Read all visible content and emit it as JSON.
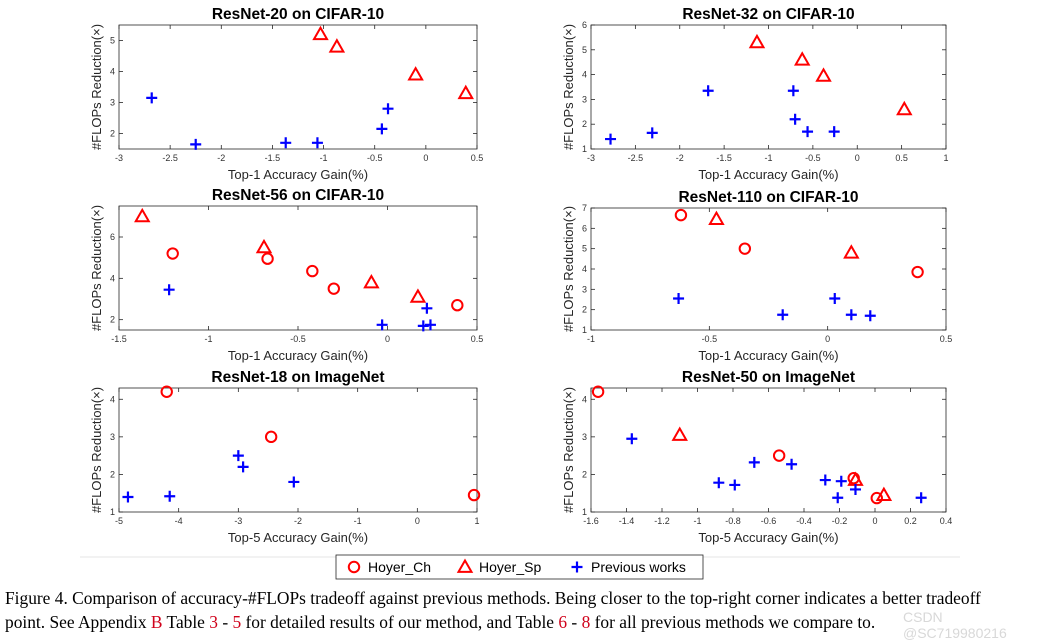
{
  "legend": {
    "items": [
      {
        "name": "Hoyer_Ch",
        "marker": "circle",
        "color": "#ff0000"
      },
      {
        "name": "Hoyer_Sp",
        "marker": "triangle",
        "color": "#ff0000"
      },
      {
        "name": "Previous works",
        "marker": "plus",
        "color": "#0000ff"
      }
    ]
  },
  "chart_data": [
    {
      "type": "scatter",
      "title": "ResNet-20 on CIFAR-10",
      "xlabel": "Top-1 Accuracy Gain(%)",
      "ylabel": "#FLOPs Reduction(×)",
      "xlim": [
        -3,
        0.5
      ],
      "ylim": [
        1.5,
        5.5
      ],
      "xticks": [
        -3,
        -2.5,
        -2,
        -1.5,
        -1,
        -0.5,
        0,
        0.5
      ],
      "xtick_labels": [
        "-3",
        "-2.5",
        "-2",
        "-1.5",
        "-1",
        "-0.5",
        "0",
        "0.5"
      ],
      "yticks": [
        2,
        3,
        4,
        5
      ],
      "ytick_labels": [
        "2",
        "3",
        "4",
        "5"
      ],
      "series": [
        {
          "name": "Hoyer_Ch",
          "points": []
        },
        {
          "name": "Hoyer_Sp",
          "points": [
            [
              -1.03,
              5.2
            ],
            [
              -0.87,
              4.8
            ],
            [
              -0.1,
              3.9
            ],
            [
              0.39,
              3.3
            ]
          ]
        },
        {
          "name": "Previous works",
          "points": [
            [
              -2.68,
              3.15
            ],
            [
              -2.25,
              1.65
            ],
            [
              -1.37,
              1.7
            ],
            [
              -1.06,
              1.7
            ],
            [
              -0.43,
              2.15
            ],
            [
              -0.37,
              2.8
            ]
          ]
        }
      ]
    },
    {
      "type": "scatter",
      "title": "ResNet-32 on CIFAR-10",
      "xlabel": "Top-1 Accuracy Gain(%)",
      "ylabel": "#FLOPs Reduction(×)",
      "xlim": [
        -3,
        1
      ],
      "ylim": [
        1,
        6
      ],
      "xticks": [
        -3,
        -2.5,
        -2,
        -1.5,
        -1,
        -0.5,
        0,
        0.5,
        1
      ],
      "xtick_labels": [
        "-3",
        "-2.5",
        "-2",
        "-1.5",
        "-1",
        "-0.5",
        "0",
        "0.5",
        "1"
      ],
      "yticks": [
        1,
        2,
        3,
        4,
        5,
        6
      ],
      "ytick_labels": [
        "1",
        "2",
        "3",
        "4",
        "5",
        "6"
      ],
      "series": [
        {
          "name": "Hoyer_Ch",
          "points": []
        },
        {
          "name": "Hoyer_Sp",
          "points": [
            [
              -1.13,
              5.3
            ],
            [
              -0.62,
              4.6
            ],
            [
              -0.38,
              3.95
            ],
            [
              0.53,
              2.6
            ]
          ]
        },
        {
          "name": "Previous works",
          "points": [
            [
              -2.78,
              1.4
            ],
            [
              -2.31,
              1.65
            ],
            [
              -1.68,
              3.35
            ],
            [
              -0.72,
              3.35
            ],
            [
              -0.7,
              2.2
            ],
            [
              -0.56,
              1.7
            ],
            [
              -0.26,
              1.7
            ]
          ]
        }
      ]
    },
    {
      "type": "scatter",
      "title": "ResNet-56 on CIFAR-10",
      "xlabel": "Top-1 Accuracy Gain(%)",
      "ylabel": "#FLOPs Reduction(×)",
      "xlim": [
        -1.5,
        0.5
      ],
      "ylim": [
        1.5,
        7.5
      ],
      "xticks": [
        -1.5,
        -1,
        -0.5,
        0,
        0.5
      ],
      "xtick_labels": [
        "-1.5",
        "-1",
        "-0.5",
        "0",
        "0.5"
      ],
      "yticks": [
        2,
        4,
        6
      ],
      "ytick_labels": [
        "2",
        "4",
        "6"
      ],
      "series": [
        {
          "name": "Hoyer_Ch",
          "points": [
            [
              -1.2,
              5.2
            ],
            [
              -0.67,
              4.95
            ],
            [
              -0.42,
              4.35
            ],
            [
              -0.3,
              3.5
            ],
            [
              0.39,
              2.7
            ]
          ]
        },
        {
          "name": "Hoyer_Sp",
          "points": [
            [
              -1.37,
              7.0
            ],
            [
              -0.69,
              5.5
            ],
            [
              -0.09,
              3.8
            ],
            [
              0.17,
              3.1
            ]
          ]
        },
        {
          "name": "Previous works",
          "points": [
            [
              -1.22,
              3.45
            ],
            [
              -0.03,
              1.75
            ],
            [
              0.2,
              1.7
            ],
            [
              0.22,
              2.55
            ],
            [
              0.24,
              1.75
            ]
          ]
        }
      ]
    },
    {
      "type": "scatter",
      "title": "ResNet-110 on CIFAR-10",
      "xlabel": "Top-1 Accuracy Gain(%)",
      "ylabel": "#FLOPs Reduction(×)",
      "xlim": [
        -1,
        0.5
      ],
      "ylim": [
        1,
        7
      ],
      "xticks": [
        -1,
        -0.5,
        0,
        0.5
      ],
      "xtick_labels": [
        "-1",
        "-0.5",
        "0",
        "0.5"
      ],
      "yticks": [
        1,
        2,
        3,
        4,
        5,
        6,
        7
      ],
      "ytick_labels": [
        "1",
        "2",
        "3",
        "4",
        "5",
        "6",
        "7"
      ],
      "series": [
        {
          "name": "Hoyer_Ch",
          "points": [
            [
              -0.62,
              6.65
            ],
            [
              -0.35,
              5.0
            ],
            [
              0.38,
              3.85
            ]
          ]
        },
        {
          "name": "Hoyer_Sp",
          "points": [
            [
              -0.47,
              6.45
            ],
            [
              0.1,
              4.8
            ]
          ]
        },
        {
          "name": "Previous works",
          "points": [
            [
              -0.63,
              2.55
            ],
            [
              -0.19,
              1.75
            ],
            [
              0.03,
              2.55
            ],
            [
              0.1,
              1.75
            ],
            [
              0.18,
              1.7
            ]
          ]
        }
      ]
    },
    {
      "type": "scatter",
      "title": "ResNet-18 on ImageNet",
      "xlabel": "Top-5 Accuracy Gain(%)",
      "ylabel": "#FLOPs Reduction(×)",
      "xlim": [
        -5,
        1
      ],
      "ylim": [
        1,
        4.3
      ],
      "xticks": [
        -5,
        -4,
        -3,
        -2,
        -1,
        0,
        1
      ],
      "xtick_labels": [
        "-5",
        "-4",
        "-3",
        "-2",
        "-1",
        "0",
        "1"
      ],
      "yticks": [
        1,
        2,
        3,
        4
      ],
      "ytick_labels": [
        "1",
        "2",
        "3",
        "4"
      ],
      "series": [
        {
          "name": "Hoyer_Ch",
          "points": [
            [
              -4.2,
              4.2
            ],
            [
              -2.45,
              3.0
            ],
            [
              0.95,
              1.45
            ]
          ]
        },
        {
          "name": "Hoyer_Sp",
          "points": []
        },
        {
          "name": "Previous works",
          "points": [
            [
              -4.85,
              1.4
            ],
            [
              -4.15,
              1.42
            ],
            [
              -3.0,
              2.5
            ],
            [
              -2.92,
              2.2
            ],
            [
              -2.07,
              1.8
            ]
          ]
        }
      ]
    },
    {
      "type": "scatter",
      "title": "ResNet-50 on ImageNet",
      "xlabel": "Top-5 Accuracy Gain(%)",
      "ylabel": "#FLOPs Reduction(×)",
      "xlim": [
        -1.6,
        0.4
      ],
      "ylim": [
        1,
        4.3
      ],
      "xticks": [
        -1.6,
        -1.4,
        -1.2,
        -1,
        -0.8,
        -0.6,
        -0.4,
        -0.2,
        0,
        0.2,
        0.4
      ],
      "xtick_labels": [
        "-1.6",
        "-1.4",
        "-1.2",
        "-1",
        "-0.8",
        "-0.6",
        "-0.4",
        "-0.2",
        "0",
        "0.2",
        "0.4"
      ],
      "yticks": [
        1,
        2,
        3,
        4
      ],
      "ytick_labels": [
        "1",
        "2",
        "3",
        "4"
      ],
      "series": [
        {
          "name": "Hoyer_Ch",
          "points": [
            [
              -1.56,
              4.2
            ],
            [
              -0.54,
              2.5
            ],
            [
              -0.12,
              1.9
            ],
            [
              0.01,
              1.37
            ]
          ]
        },
        {
          "name": "Hoyer_Sp",
          "points": [
            [
              -1.1,
              3.05
            ],
            [
              -0.11,
              1.85
            ],
            [
              0.05,
              1.45
            ]
          ]
        },
        {
          "name": "Previous works",
          "points": [
            [
              -1.37,
              2.95
            ],
            [
              -0.88,
              1.78
            ],
            [
              -0.79,
              1.72
            ],
            [
              -0.68,
              2.32
            ],
            [
              -0.47,
              2.27
            ],
            [
              -0.28,
              1.85
            ],
            [
              -0.21,
              1.38
            ],
            [
              -0.19,
              1.82
            ],
            [
              -0.11,
              1.6
            ],
            [
              0.26,
              1.38
            ]
          ]
        }
      ]
    }
  ],
  "caption": {
    "line1": "Figure 4. Comparison of accuracy-#FLOPs tradeoff against previous methods. Being closer to the top-right corner indicates a better tradeoff",
    "line2_a": "point. See Appendix ",
    "ref_appendix": "B",
    "line2_b": " Table ",
    "ref_t1": "3",
    "line2_c": " - ",
    "ref_t2": "5",
    "line2_d": " for detailed results of our method, and Table ",
    "ref_t3": "6",
    "line2_e": " - ",
    "ref_t4": "8",
    "line2_f": " for all previous methods we compare to."
  },
  "watermark": "CSDN @SC719980216"
}
